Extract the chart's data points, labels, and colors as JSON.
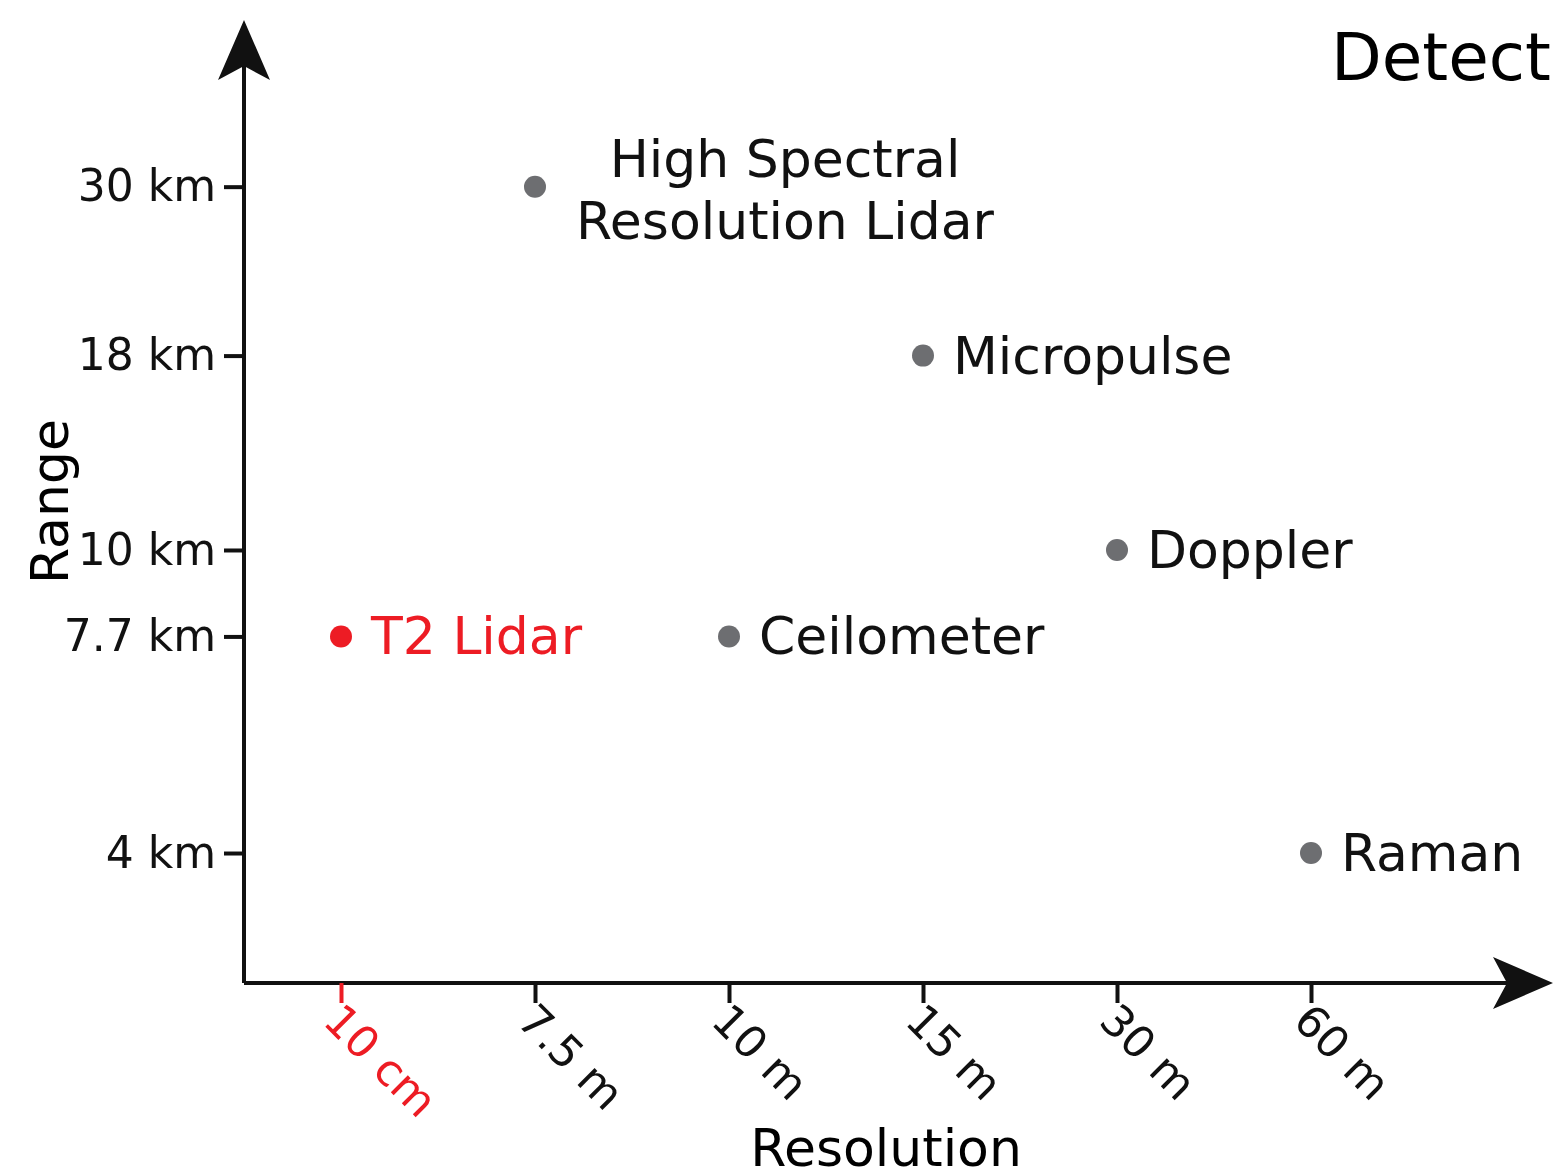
{
  "chart_data": {
    "type": "scatter",
    "title": "Detect",
    "xlabel": "Resolution",
    "ylabel": "Range",
    "categories": [
      "10 cm",
      "7.5 m",
      "10 m",
      "15 m",
      "30 m",
      "60 m"
    ],
    "values": [
      7.7,
      30,
      7.7,
      18,
      10,
      4
    ],
    "color": "#6d6e71",
    "colors": [
      "#ed1c24",
      "#6d6e71",
      "#6d6e71",
      "#6d6e71",
      "#6d6e71",
      "#6d6e71"
    ],
    "log": "y",
    "ylim": [
      2.7,
      44
    ],
    "yticks": [
      {
        "value": 4,
        "label": "4 km"
      },
      {
        "value": 7.7,
        "label": "7.7 km"
      },
      {
        "value": 10,
        "label": "10 km"
      },
      {
        "value": 18,
        "label": "18 km"
      },
      {
        "value": 30,
        "label": "30 km"
      }
    ],
    "grid": false,
    "marker": "circle",
    "annotations": [
      "T2 Lidar",
      "High Spectral Resolution Lidar",
      "Ceilometer",
      "Micropulse",
      "Doppler",
      "Raman"
    ]
  }
}
